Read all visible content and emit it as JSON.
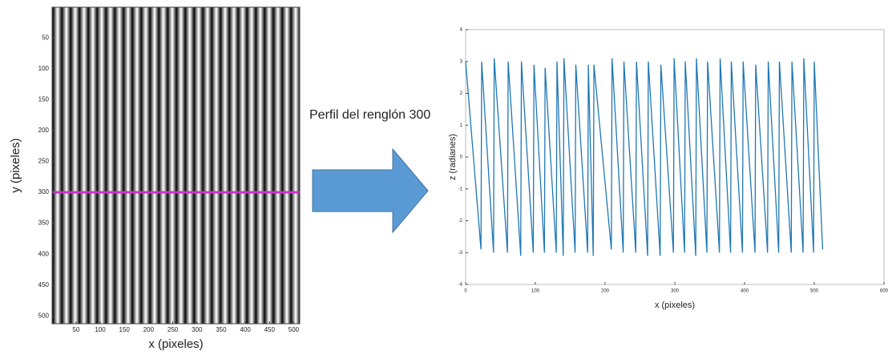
{
  "chart_data": [
    {
      "type": "image",
      "xlabel": "x (pixeles)",
      "ylabel": "y (pixeles)",
      "xlim": [
        0.5,
        512.5
      ],
      "ylim": [
        512.5,
        0.5
      ],
      "xticks": [
        50,
        100,
        150,
        200,
        250,
        300,
        350,
        400,
        450,
        500
      ],
      "yticks": [
        50,
        100,
        150,
        200,
        250,
        300,
        350,
        400,
        450,
        500
      ],
      "highlight_row": 300,
      "highlight_color": "#cc33cc",
      "annotation": "Perfil del renglón 300"
    },
    {
      "type": "line",
      "xlabel": "x (pixeles)",
      "ylabel": "z (radianes)",
      "color": "#1f77b4",
      "xlim": [
        0,
        600
      ],
      "ylim": [
        -4,
        4
      ],
      "xticks": [
        0,
        100,
        200,
        300,
        400,
        500,
        600
      ],
      "yticks": [
        -4,
        -3,
        -2,
        -1,
        0,
        1,
        2,
        3,
        4
      ],
      "x": [
        0,
        22,
        23,
        40,
        41,
        60,
        61,
        79,
        80,
        97,
        98,
        113,
        114,
        130,
        131,
        140,
        141,
        157,
        158,
        175,
        176,
        183,
        184,
        209,
        210,
        226,
        227,
        244,
        245,
        261,
        262,
        279,
        280,
        298,
        299,
        314,
        315,
        330,
        331,
        346,
        347,
        364,
        365,
        380,
        381,
        397,
        398,
        415,
        416,
        433,
        434,
        449,
        450,
        467,
        468,
        484,
        485,
        499,
        500,
        512
      ],
      "values": [
        3.0,
        -2.9,
        3.0,
        -3.0,
        3.1,
        -3.0,
        3.0,
        -3.1,
        3.0,
        -3.0,
        2.9,
        -3.0,
        2.8,
        -3.0,
        3.0,
        -3.1,
        3.1,
        -3.0,
        2.9,
        -3.0,
        2.9,
        -3.1,
        2.9,
        -2.9,
        3.1,
        -3.0,
        3.0,
        -3.0,
        3.0,
        -3.1,
        3.0,
        -3.1,
        2.9,
        -3.0,
        3.1,
        -3.0,
        3.0,
        -3.1,
        3.1,
        -3.0,
        3.0,
        -3.0,
        3.1,
        -3.0,
        3.0,
        -3.0,
        3.0,
        -3.0,
        2.9,
        -3.0,
        3.0,
        -3.0,
        3.0,
        -3.0,
        3.0,
        -3.0,
        3.1,
        -3.0,
        3.0,
        -2.9
      ]
    }
  ]
}
